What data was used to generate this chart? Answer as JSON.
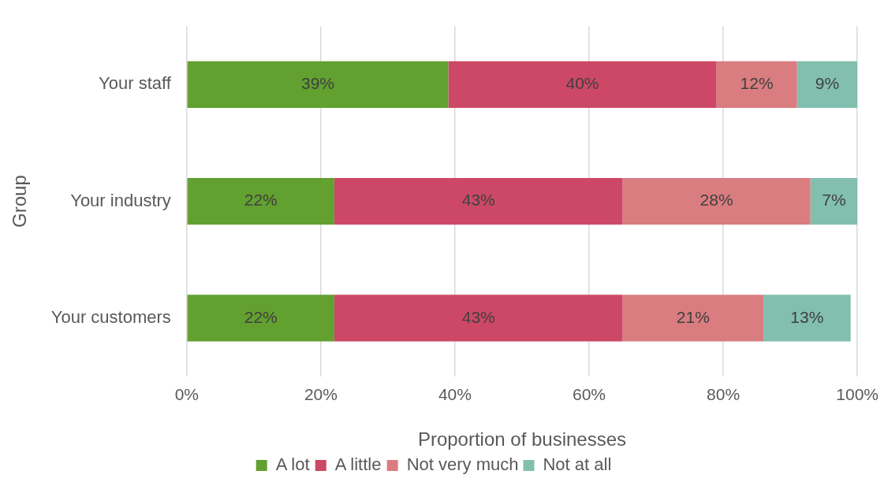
{
  "chart_data": {
    "type": "bar",
    "orientation": "horizontal",
    "stacked": true,
    "categories": [
      "Your staff",
      "Your industry",
      "Your customers"
    ],
    "series": [
      {
        "name": "A lot",
        "color": "#62a030",
        "values": [
          39,
          22,
          22
        ],
        "value_labels": [
          "39%",
          "22%",
          "22%"
        ]
      },
      {
        "name": "A little",
        "color": "#cc4866",
        "values": [
          40,
          43,
          43
        ],
        "value_labels": [
          "40%",
          "43%",
          "43%"
        ]
      },
      {
        "name": "Not very much",
        "color": "#da7d80",
        "values": [
          12,
          28,
          21
        ],
        "value_labels": [
          "12%",
          "28%",
          "21%"
        ]
      },
      {
        "name": "Not at all",
        "color": "#82bfae",
        "values": [
          9,
          7,
          13
        ],
        "value_labels": [
          "9%",
          "7%",
          "13%"
        ]
      }
    ],
    "xlabel": "Proportion of businesses",
    "ylabel": "Group",
    "xlim": [
      0,
      100
    ],
    "xticks": [
      {
        "value": 0,
        "label": "0%"
      },
      {
        "value": 20,
        "label": "20%"
      },
      {
        "value": 40,
        "label": "40%"
      },
      {
        "value": 60,
        "label": "60%"
      },
      {
        "value": 80,
        "label": "80%"
      },
      {
        "value": 100,
        "label": "100%"
      }
    ],
    "grid": "x",
    "legend": "bottom"
  }
}
